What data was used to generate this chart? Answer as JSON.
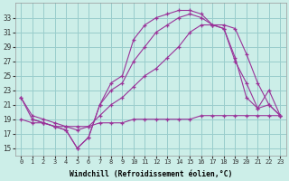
{
  "background_color": "#cceee8",
  "grid_color": "#99cccc",
  "line_color": "#993399",
  "marker": "+",
  "xlabel": "Windchill (Refroidissement éolien,°C)",
  "xlim": [
    -0.5,
    23.5
  ],
  "ylim": [
    14.0,
    35.0
  ],
  "xticks": [
    0,
    1,
    2,
    3,
    4,
    5,
    6,
    7,
    8,
    9,
    10,
    11,
    12,
    13,
    14,
    15,
    16,
    17,
    18,
    19,
    20,
    21,
    22,
    23
  ],
  "yticks": [
    15,
    17,
    19,
    21,
    23,
    25,
    27,
    29,
    31,
    33
  ],
  "curve1_x": [
    0,
    1,
    2,
    3,
    4,
    5,
    6,
    7,
    8,
    9,
    10,
    11,
    12,
    13,
    14,
    15,
    16,
    17,
    18,
    19,
    20,
    21,
    22,
    23
  ],
  "curve1_y": [
    22,
    19,
    18.5,
    18,
    17.5,
    15,
    16.5,
    21,
    24,
    25,
    30,
    32,
    33,
    33.5,
    34,
    34,
    33.5,
    32,
    32,
    31.5,
    28,
    24,
    21,
    19.5
  ],
  "curve2_x": [
    1,
    2,
    3,
    4,
    5,
    6,
    7,
    8,
    9,
    10,
    11,
    12,
    13,
    14,
    15,
    16,
    17,
    18,
    19,
    20,
    21,
    22,
    23
  ],
  "curve2_y": [
    19,
    18.5,
    18,
    17.5,
    15,
    16.5,
    21,
    23,
    24,
    27,
    29,
    31,
    32,
    33,
    33.5,
    33,
    32,
    31.5,
    27,
    24,
    20.5,
    21,
    19.5
  ],
  "curve3_x": [
    0,
    1,
    2,
    3,
    4,
    5,
    6,
    7,
    8,
    9,
    10,
    11,
    12,
    13,
    14,
    15,
    16,
    17,
    18,
    19,
    20,
    21,
    22,
    23
  ],
  "curve3_y": [
    22,
    19.5,
    19,
    18.5,
    18,
    17.5,
    18,
    19.5,
    21,
    22,
    23.5,
    25,
    26,
    27.5,
    29,
    31,
    32,
    32,
    31.5,
    27.5,
    22,
    20.5,
    23,
    19.5
  ],
  "curve4_x": [
    0,
    1,
    2,
    3,
    4,
    5,
    6,
    7,
    8,
    9,
    10,
    11,
    12,
    13,
    14,
    15,
    16,
    17,
    18,
    19,
    20,
    21,
    22,
    23
  ],
  "curve4_y": [
    19,
    18.5,
    18.5,
    18,
    18,
    18,
    18,
    18.5,
    18.5,
    18.5,
    19,
    19,
    19,
    19,
    19,
    19,
    19.5,
    19.5,
    19.5,
    19.5,
    19.5,
    19.5,
    19.5,
    19.5
  ]
}
